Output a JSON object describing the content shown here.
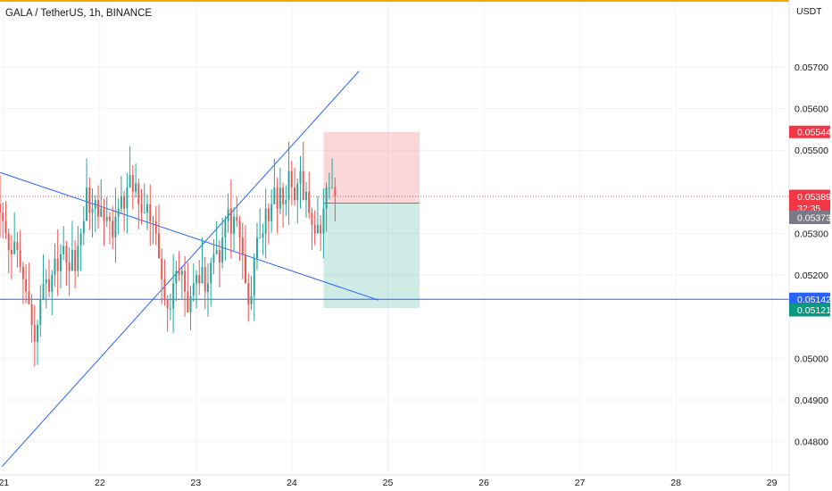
{
  "header": {
    "symbol": "GALA / TetherUS, 1h, BINANCE",
    "currency": "USDT"
  },
  "price_tags": {
    "stop": {
      "label": "0.05544",
      "color": "#f23645"
    },
    "last": {
      "label": "0.05389",
      "color": "#f23645"
    },
    "countdown": {
      "label": "32:35",
      "color": "#f23645"
    },
    "entry": {
      "label": "0.05373",
      "color": "#787b86"
    },
    "hline": {
      "label": "0.05142",
      "color": "#2962ff"
    },
    "target": {
      "label": "0.05121",
      "color": "#089981"
    }
  },
  "colors": {
    "up": "#26a69a",
    "down": "#ef5350",
    "trendline": "#2962ff",
    "top_bar": "#f7a600",
    "grid": "#f0f3fa"
  },
  "chart_data": {
    "type": "candlestick",
    "title": "GALA / TetherUS, 1h, BINANCE",
    "interval": "1h",
    "y_unit": "USDT",
    "ylim": [
      0.0472,
      0.0585
    ],
    "xlim": [
      20.96,
      29.18
    ],
    "y_ticks": [
      "0.05700",
      "0.05600",
      "0.05500",
      "0.05300",
      "0.05200",
      "0.05000",
      "0.04900",
      "0.04800"
    ],
    "x_ticks": [
      {
        "value": 21,
        "label": "21"
      },
      {
        "value": 22,
        "label": "22"
      },
      {
        "value": 23,
        "label": "23"
      },
      {
        "value": 24,
        "label": "24"
      },
      {
        "value": 25,
        "label": "25"
      },
      {
        "value": 26,
        "label": "26"
      },
      {
        "value": 27,
        "label": "27"
      },
      {
        "value": 28,
        "label": "28"
      },
      {
        "value": 29,
        "label": "29"
      }
    ],
    "grid": true,
    "closes": [
      0.0535,
      0.0533,
      0.053,
      0.0526,
      0.0525,
      0.0528,
      0.0526,
      0.0522,
      0.0519,
      0.0516,
      0.0513,
      0.0508,
      0.0504,
      0.0508,
      0.0514,
      0.0518,
      0.0519,
      0.0516,
      0.052,
      0.0524,
      0.0521,
      0.0525,
      0.0527,
      0.0523,
      0.0521,
      0.0526,
      0.0521,
      0.0527,
      0.053,
      0.0533,
      0.0541,
      0.0535,
      0.0536,
      0.0538,
      0.0534,
      0.0536,
      0.0533,
      0.0534,
      0.0533,
      0.0529,
      0.0534,
      0.0536,
      0.0539,
      0.0536,
      0.0541,
      0.0544,
      0.054,
      0.0542,
      0.0537,
      0.0535,
      0.0535,
      0.0537,
      0.0533,
      0.0533,
      0.053,
      0.0524,
      0.0519,
      0.0514,
      0.0512,
      0.0512,
      0.0518,
      0.0521,
      0.052,
      0.0521,
      0.0516,
      0.0511,
      0.0515,
      0.0518,
      0.052,
      0.0518,
      0.0522,
      0.0516,
      0.0518,
      0.0523,
      0.0525,
      0.0526,
      0.0523,
      0.0529,
      0.0533,
      0.0536,
      0.053,
      0.0534,
      0.0533,
      0.0529,
      0.0525,
      0.0518,
      0.0513,
      0.0515,
      0.0524,
      0.0529,
      0.0529,
      0.053,
      0.0536,
      0.0533,
      0.0537,
      0.0541,
      0.0536,
      0.0541,
      0.0537,
      0.0538,
      0.0545,
      0.0541,
      0.0538,
      0.0542,
      0.0545,
      0.0538,
      0.054,
      0.0535,
      0.0532,
      0.053,
      0.0532,
      0.053,
      0.0536,
      0.0541,
      0.0541,
      0.0541,
      0.05389
    ],
    "volatility": [
      0.0007,
      0.0006
    ],
    "trendline_up": {
      "from": [
        20.98,
        0.0474
      ],
      "to": [
        24.7,
        0.0569
      ]
    },
    "trendline_down": {
      "from": [
        19.5,
        0.0556
      ],
      "to": [
        24.9,
        0.0514
      ]
    },
    "horizontal_line": 0.05142,
    "last_price": 0.05389,
    "short_position": {
      "x_from": 24.33,
      "x_to": 25.33,
      "entry": 0.05373,
      "stop": 0.05544,
      "target": 0.05121
    }
  }
}
